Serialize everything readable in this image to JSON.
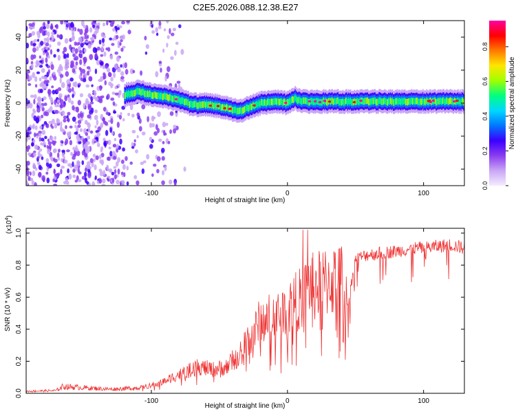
{
  "title": "C2E5.2026.088.12.38.E27",
  "chart_data": [
    {
      "type": "heatmap",
      "name": "spectrogram",
      "xlabel": "Height of straight line (km)",
      "ylabel": "Frequency (Hz)",
      "xlim": [
        -192,
        130
      ],
      "ylim": [
        -50,
        50
      ],
      "xticks": [
        -100,
        0,
        100
      ],
      "yticks": [
        40,
        20,
        0,
        -20,
        -40
      ],
      "colorbar": {
        "label": "Normalized spectral amplitude",
        "range": [
          0,
          0.95
        ],
        "ticks": [
          0.0,
          0.2,
          0.4,
          0.6,
          0.8
        ],
        "colors": [
          "#f4ecff",
          "#c9a6f5",
          "#8a3df0",
          "#3b00ff",
          "#0077ff",
          "#00d8ff",
          "#00ff80",
          "#a0ff00",
          "#ffe600",
          "#ff7a00",
          "#ff0000",
          "#ff00a0"
        ]
      },
      "ridge": {
        "x": [
          -120,
          -110,
          -100,
          -90,
          -80,
          -70,
          -60,
          -50,
          -40,
          -35,
          -30,
          -20,
          -10,
          0,
          5,
          10,
          20,
          40,
          60,
          80,
          100,
          130
        ],
        "y": [
          5,
          7,
          5,
          4,
          2,
          -1,
          -1,
          -2,
          -4,
          -5,
          -3,
          0,
          1,
          0,
          3,
          1,
          1,
          1,
          1,
          1,
          1,
          1
        ]
      },
      "noise_region_x": [
        -192,
        -120
      ]
    },
    {
      "type": "line",
      "name": "snr",
      "xlabel": "Height of straight line (km)",
      "ylabel": "SNR (10 * v/v)",
      "scale_label": "(x10",
      "scale_exponent": "4",
      "scale_suffix": ")",
      "xlim": [
        -192,
        130
      ],
      "ylim": [
        0,
        1.03
      ],
      "xticks": [
        -100,
        0,
        100
      ],
      "yticks": [
        0.0,
        0.2,
        0.4,
        0.6,
        0.8,
        1.0
      ],
      "color": "#ee3333",
      "envelope": {
        "x": [
          -192,
          -170,
          -165,
          -130,
          -110,
          -95,
          -85,
          -75,
          -65,
          -55,
          -45,
          -35,
          -30,
          -25,
          -20,
          -10,
          0,
          10,
          13,
          20,
          30,
          40,
          45,
          50,
          60,
          80,
          95,
          100,
          110,
          120,
          130
        ],
        "y": [
          0.015,
          0.02,
          0.05,
          0.03,
          0.04,
          0.07,
          0.12,
          0.16,
          0.2,
          0.18,
          0.2,
          0.3,
          0.4,
          0.45,
          0.55,
          0.58,
          0.65,
          0.72,
          0.82,
          0.8,
          0.85,
          0.86,
          0.6,
          0.86,
          0.89,
          0.91,
          0.93,
          0.93,
          0.94,
          0.95,
          0.93
        ]
      }
    }
  ]
}
